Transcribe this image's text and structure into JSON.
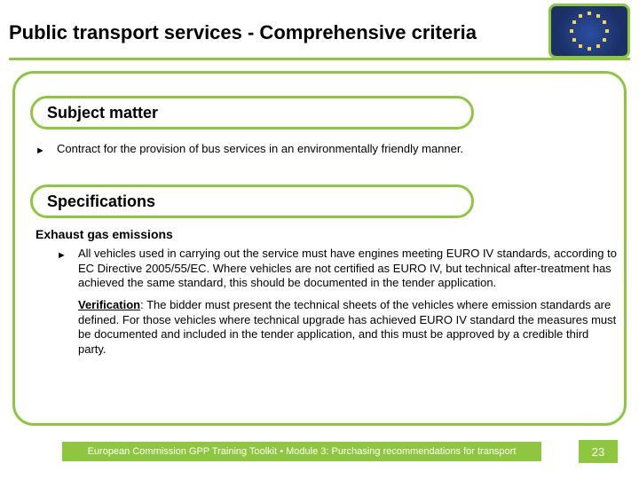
{
  "colors": {
    "accent": "#8fc63f",
    "frame_border": "#8fc63f",
    "title_underline": "#8fc63f",
    "footer_bg": "#8fc63f",
    "pagebox_bg": "#8fc63f",
    "logo_border": "#8fc63f",
    "text": "#000000",
    "star": "#f6d642",
    "flag_bg": "#1c2f66"
  },
  "title": "Public transport services - Comprehensive criteria",
  "section1": {
    "heading": "Subject matter",
    "items": [
      "Contract for the provision of bus services in an environmentally friendly manner."
    ]
  },
  "section2": {
    "heading": "Specifications",
    "subheading": "Exhaust gas emissions",
    "items": [
      "All vehicles used in carrying out the service must have engines meeting EURO IV standards, according to EC Directive 2005/55/EC. Where vehicles are not certified as EURO IV, but technical after-treatment has achieved the same standard, this should be documented in the tender application."
    ],
    "verification_label": "Verification",
    "verification_text": ": The bidder must present the technical sheets of the vehicles where emission standards are defined. For those vehicles where technical upgrade has achieved EURO IV standard the measures must be documented and included in the tender application, and this must be approved by a credible third party."
  },
  "footer": "European Commission GPP Training Toolkit  •  Module 3:  Purchasing recommendations for transport",
  "page_number": "23"
}
